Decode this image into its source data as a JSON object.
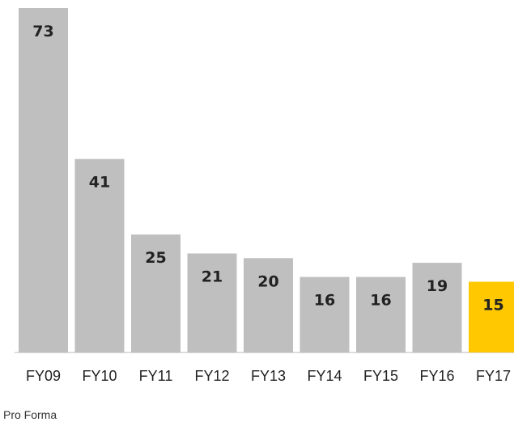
{
  "chart_data": {
    "type": "bar",
    "categories": [
      "FY09",
      "FY10",
      "FY11",
      "FY12",
      "FY13",
      "FY14",
      "FY15",
      "FY16",
      "FY17"
    ],
    "values": [
      73,
      41,
      25,
      21,
      20,
      16,
      16,
      19,
      15
    ],
    "category_note": "Pro Forma",
    "title": "",
    "xlabel": "",
    "ylabel": "",
    "ylim": [
      0,
      73
    ],
    "grid": false,
    "legend": "none",
    "colors": {
      "default_bar": "#bfbfbf",
      "highlight_bar": "#ffc800",
      "axis": "#d0d0d0",
      "label": "#222222"
    },
    "highlight_index": 8
  }
}
